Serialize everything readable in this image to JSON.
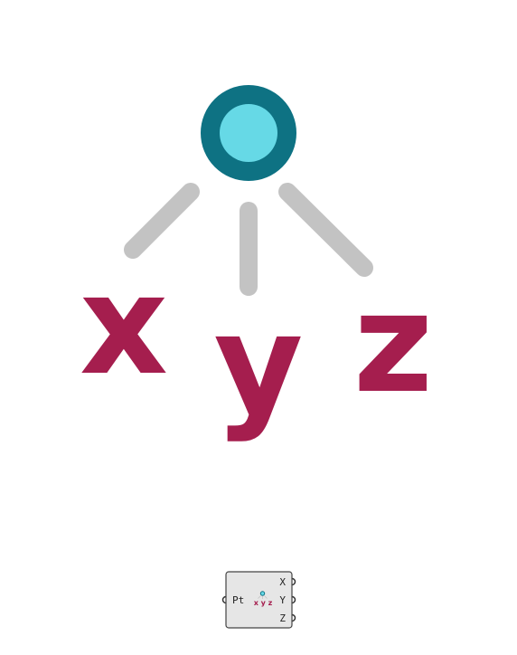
{
  "illustration": {
    "letters": {
      "x": "x",
      "y": "y",
      "z": "z"
    }
  },
  "component": {
    "input_label": "Pt",
    "outputs": [
      "X",
      "Y",
      "Z"
    ],
    "icon_letters": "x y z"
  },
  "colors": {
    "point_ring": "#0e7283",
    "point_fill": "#66d9e6",
    "connector": "#c3c3c3",
    "letter": "#a51e4e",
    "node_bg": "#e6e6e6",
    "node_border": "#444444"
  }
}
